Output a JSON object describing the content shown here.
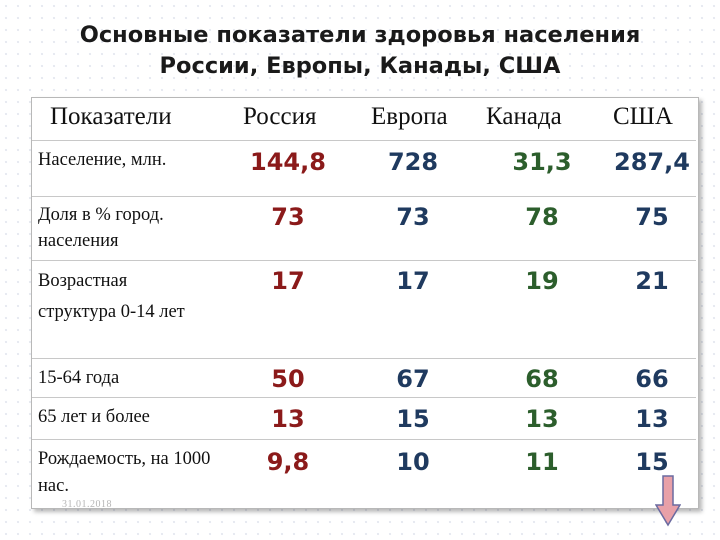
{
  "title_line1": "Основные показатели здоровья населения",
  "title_line2": "России, Европы, Канады, США",
  "headers": {
    "indicator": "Показатели",
    "russia": "Россия",
    "europe": "Европа",
    "canada": "Канада",
    "usa": "США"
  },
  "rows": [
    {
      "label": "Население, млн.",
      "russia": "144,8",
      "europe": "728",
      "canada": "31,3",
      "usa": "287,4"
    },
    {
      "label": "Доля в % город. населения",
      "russia": "73",
      "europe": "73",
      "canada": "78",
      "usa": "75"
    },
    {
      "label": "Возрастная структура 0-14 лет",
      "russia": "17",
      "europe": "17",
      "canada": "19",
      "usa": "21"
    },
    {
      "label": "15-64 года",
      "russia": "50",
      "europe": "67",
      "canada": "68",
      "usa": "66"
    },
    {
      "label": "65 лет и более",
      "russia": "13",
      "europe": "15",
      "canada": "13",
      "usa": "13"
    },
    {
      "label": "Рождаемость, на 1000 нас.",
      "russia": "9,8",
      "europe": "10",
      "canada": "11",
      "usa": "15"
    }
  ],
  "date": "31.01.2018",
  "colors": {
    "russia": "#8b1a1a",
    "europe": "#1f3a5f",
    "canada": "#2c5e2c",
    "usa": "#1f3a5f",
    "arrow_fill": "#e8a0a8",
    "arrow_stroke": "#6a6aa0"
  },
  "icons": {
    "scroll_arrow": "down-arrow-icon"
  }
}
